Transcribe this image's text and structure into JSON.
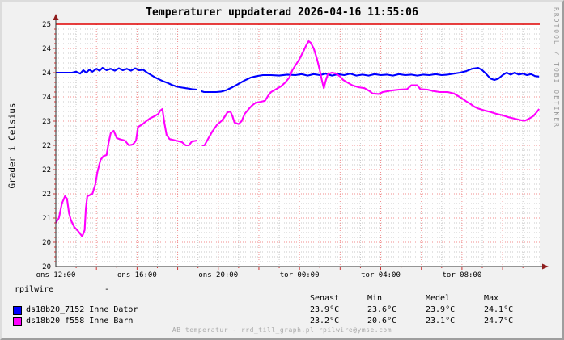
{
  "header": {
    "title": "Temperaturer uppdaterad 2026-04-16 11:55:06"
  },
  "watermark": "RRDTOOL / TOBI OETIKER",
  "footer": "AB temperatur - rrd_till_graph.pl rpilwire@ymse.com",
  "legend": {
    "pre_label": "rpilwire",
    "pre_value": "-",
    "columns": [
      "Senast",
      "Min",
      "Medel",
      "Max"
    ],
    "rows": [
      {
        "color": "#0000ff",
        "label": "ds18b20_7152 Inne Dator",
        "values": [
          "23.9°C",
          "23.6°C",
          "23.9°C",
          "24.1°C"
        ]
      },
      {
        "color": "#ff00ff",
        "label": "ds18b20_f558 Inne Barn",
        "values": [
          "23.2°C",
          "20.6°C",
          "23.1°C",
          "24.7°C"
        ]
      }
    ]
  },
  "chart_data": {
    "type": "line",
    "title": "Temperaturer uppdaterad 2026-04-16 11:55:06",
    "xlabel": "",
    "ylabel": "Grader i Celsius",
    "ylim": [
      20,
      25
    ],
    "y_tick_step": 0.5,
    "y_tick_labels": [
      "25",
      "24",
      "24",
      "24",
      "23",
      "22",
      "22",
      "22",
      "21",
      "20",
      "20"
    ],
    "x_tick_labels": [
      "ons 12:00",
      "ons 16:00",
      "ons 20:00",
      "tor 00:00",
      "tor 04:00",
      "tor 08:00"
    ],
    "x_span_hours": 23.83,
    "x_label_every_hours": 4,
    "grid": {
      "minor_x_hours": 1,
      "major_x_hours": 2,
      "minor_y": 0.1,
      "major_y": 0.5,
      "grid_on": true
    },
    "hrule": 25,
    "legend_position": "bottom",
    "colors": {
      "grid_minor": "#c9c9c9",
      "grid_major": "#f28e8e",
      "hrule": "#e00000",
      "arrow": "#8f1d1d"
    },
    "series": [
      {
        "name": "ds18b20_7152 Inne Dator",
        "color": "#0000ff",
        "points": [
          [
            0,
            24.0
          ],
          [
            0.4,
            24.0
          ],
          [
            0.8,
            24.0
          ],
          [
            1.0,
            24.02
          ],
          [
            1.2,
            23.98
          ],
          [
            1.35,
            24.05
          ],
          [
            1.5,
            24.0
          ],
          [
            1.65,
            24.06
          ],
          [
            1.8,
            24.02
          ],
          [
            2.0,
            24.08
          ],
          [
            2.15,
            24.04
          ],
          [
            2.3,
            24.1
          ],
          [
            2.5,
            24.05
          ],
          [
            2.7,
            24.08
          ],
          [
            2.9,
            24.04
          ],
          [
            3.1,
            24.09
          ],
          [
            3.3,
            24.05
          ],
          [
            3.5,
            24.08
          ],
          [
            3.7,
            24.04
          ],
          [
            3.9,
            24.09
          ],
          [
            4.1,
            24.05
          ],
          [
            4.3,
            24.06
          ],
          [
            4.5,
            24.0
          ],
          [
            4.7,
            23.95
          ],
          [
            4.9,
            23.9
          ],
          [
            5.1,
            23.86
          ],
          [
            5.3,
            23.82
          ],
          [
            5.5,
            23.79
          ],
          [
            5.7,
            23.75
          ],
          [
            5.9,
            23.72
          ],
          [
            6.1,
            23.7
          ],
          [
            6.4,
            23.68
          ],
          [
            6.7,
            23.66
          ],
          [
            6.95,
            23.65
          ],
          null,
          [
            7.15,
            23.62
          ],
          [
            7.3,
            23.6
          ],
          [
            7.6,
            23.6
          ],
          [
            7.9,
            23.6
          ],
          [
            8.15,
            23.61
          ],
          [
            8.4,
            23.64
          ],
          [
            8.7,
            23.7
          ],
          [
            9.0,
            23.77
          ],
          [
            9.3,
            23.84
          ],
          [
            9.6,
            23.9
          ],
          [
            9.9,
            23.93
          ],
          [
            10.2,
            23.95
          ],
          [
            10.6,
            23.95
          ],
          [
            11.0,
            23.94
          ],
          [
            11.4,
            23.96
          ],
          [
            11.8,
            23.95
          ],
          [
            12.1,
            23.97
          ],
          [
            12.4,
            23.94
          ],
          [
            12.7,
            23.97
          ],
          [
            13.0,
            23.95
          ],
          [
            13.3,
            23.98
          ],
          [
            13.6,
            23.94
          ],
          [
            13.9,
            23.97
          ],
          [
            14.2,
            23.95
          ],
          [
            14.5,
            23.98
          ],
          [
            14.8,
            23.94
          ],
          [
            15.1,
            23.96
          ],
          [
            15.4,
            23.94
          ],
          [
            15.7,
            23.97
          ],
          [
            16.0,
            23.95
          ],
          [
            16.3,
            23.96
          ],
          [
            16.6,
            23.94
          ],
          [
            16.9,
            23.97
          ],
          [
            17.2,
            23.95
          ],
          [
            17.5,
            23.96
          ],
          [
            17.8,
            23.94
          ],
          [
            18.1,
            23.96
          ],
          [
            18.4,
            23.95
          ],
          [
            18.7,
            23.97
          ],
          [
            19.0,
            23.95
          ],
          [
            19.3,
            23.96
          ],
          [
            19.6,
            23.98
          ],
          [
            19.9,
            24.0
          ],
          [
            20.2,
            24.03
          ],
          [
            20.5,
            24.08
          ],
          [
            20.8,
            24.1
          ],
          [
            21.0,
            24.05
          ],
          [
            21.2,
            23.97
          ],
          [
            21.4,
            23.88
          ],
          [
            21.6,
            23.85
          ],
          [
            21.8,
            23.88
          ],
          [
            22.0,
            23.95
          ],
          [
            22.2,
            24.0
          ],
          [
            22.4,
            23.96
          ],
          [
            22.6,
            24.0
          ],
          [
            22.8,
            23.96
          ],
          [
            23.0,
            23.98
          ],
          [
            23.2,
            23.95
          ],
          [
            23.4,
            23.97
          ],
          [
            23.6,
            23.93
          ],
          [
            23.8,
            23.92
          ]
        ]
      },
      {
        "name": "ds18b20_f558 Inne Barn",
        "color": "#ff00ff",
        "points": [
          [
            0,
            20.9
          ],
          [
            0.15,
            21.0
          ],
          [
            0.3,
            21.3
          ],
          [
            0.45,
            21.45
          ],
          [
            0.55,
            21.4
          ],
          [
            0.65,
            21.1
          ],
          [
            0.75,
            20.95
          ],
          [
            0.9,
            20.82
          ],
          [
            1.1,
            20.73
          ],
          [
            1.3,
            20.62
          ],
          [
            1.42,
            20.75
          ],
          [
            1.48,
            21.2
          ],
          [
            1.55,
            21.45
          ],
          [
            1.8,
            21.5
          ],
          [
            1.95,
            21.7
          ],
          [
            2.05,
            21.95
          ],
          [
            2.2,
            22.2
          ],
          [
            2.35,
            22.28
          ],
          [
            2.5,
            22.3
          ],
          [
            2.6,
            22.55
          ],
          [
            2.7,
            22.75
          ],
          [
            2.85,
            22.8
          ],
          [
            3.0,
            22.65
          ],
          [
            3.2,
            22.62
          ],
          [
            3.4,
            22.6
          ],
          [
            3.6,
            22.5
          ],
          [
            3.8,
            22.52
          ],
          [
            3.95,
            22.6
          ],
          [
            4.05,
            22.88
          ],
          [
            4.25,
            22.93
          ],
          [
            4.45,
            23.0
          ],
          [
            4.65,
            23.06
          ],
          [
            4.85,
            23.1
          ],
          [
            5.05,
            23.15
          ],
          [
            5.15,
            23.22
          ],
          [
            5.25,
            23.25
          ],
          [
            5.35,
            22.95
          ],
          [
            5.45,
            22.72
          ],
          [
            5.6,
            22.63
          ],
          [
            5.9,
            22.6
          ],
          [
            6.2,
            22.57
          ],
          [
            6.4,
            22.5
          ],
          [
            6.55,
            22.5
          ],
          [
            6.7,
            22.58
          ],
          [
            6.95,
            22.6
          ],
          null,
          [
            7.2,
            22.5
          ],
          [
            7.32,
            22.5
          ],
          [
            7.45,
            22.6
          ],
          [
            7.7,
            22.78
          ],
          [
            7.95,
            22.93
          ],
          [
            8.15,
            23.0
          ],
          [
            8.3,
            23.08
          ],
          [
            8.45,
            23.18
          ],
          [
            8.6,
            23.2
          ],
          [
            8.7,
            23.1
          ],
          [
            8.8,
            22.97
          ],
          [
            9.0,
            22.94
          ],
          [
            9.15,
            23.0
          ],
          [
            9.3,
            23.15
          ],
          [
            9.5,
            23.25
          ],
          [
            9.65,
            23.32
          ],
          [
            9.85,
            23.38
          ],
          [
            10.1,
            23.4
          ],
          [
            10.3,
            23.42
          ],
          [
            10.45,
            23.52
          ],
          [
            10.6,
            23.6
          ],
          [
            10.85,
            23.66
          ],
          [
            11.1,
            23.72
          ],
          [
            11.3,
            23.8
          ],
          [
            11.5,
            23.9
          ],
          [
            11.65,
            24.05
          ],
          [
            11.8,
            24.15
          ],
          [
            12.0,
            24.28
          ],
          [
            12.2,
            24.45
          ],
          [
            12.35,
            24.58
          ],
          [
            12.45,
            24.65
          ],
          [
            12.55,
            24.62
          ],
          [
            12.7,
            24.5
          ],
          [
            12.85,
            24.3
          ],
          [
            13.0,
            24.05
          ],
          [
            13.1,
            23.85
          ],
          [
            13.2,
            23.68
          ],
          [
            13.3,
            23.85
          ],
          [
            13.4,
            23.97
          ],
          [
            13.6,
            24.0
          ],
          [
            13.8,
            23.98
          ],
          [
            14.0,
            23.92
          ],
          [
            14.15,
            23.85
          ],
          [
            14.35,
            23.8
          ],
          [
            14.6,
            23.74
          ],
          [
            14.9,
            23.7
          ],
          [
            15.2,
            23.68
          ],
          [
            15.45,
            23.62
          ],
          [
            15.6,
            23.57
          ],
          [
            15.9,
            23.56
          ],
          [
            16.1,
            23.6
          ],
          [
            16.5,
            23.63
          ],
          [
            16.9,
            23.65
          ],
          [
            17.3,
            23.66
          ],
          [
            17.5,
            23.74
          ],
          [
            17.8,
            23.74
          ],
          [
            17.95,
            23.66
          ],
          [
            18.3,
            23.65
          ],
          [
            18.6,
            23.62
          ],
          [
            18.9,
            23.6
          ],
          [
            19.3,
            23.6
          ],
          [
            19.6,
            23.57
          ],
          [
            19.8,
            23.52
          ],
          [
            20.0,
            23.47
          ],
          [
            20.2,
            23.41
          ],
          [
            20.4,
            23.36
          ],
          [
            20.6,
            23.3
          ],
          [
            20.8,
            23.26
          ],
          [
            21.1,
            23.22
          ],
          [
            21.4,
            23.19
          ],
          [
            21.7,
            23.15
          ],
          [
            22.0,
            23.12
          ],
          [
            22.3,
            23.08
          ],
          [
            22.6,
            23.05
          ],
          [
            22.9,
            23.02
          ],
          [
            23.1,
            23.01
          ],
          [
            23.3,
            23.05
          ],
          [
            23.5,
            23.1
          ],
          [
            23.65,
            23.17
          ],
          [
            23.8,
            23.25
          ]
        ]
      }
    ]
  }
}
